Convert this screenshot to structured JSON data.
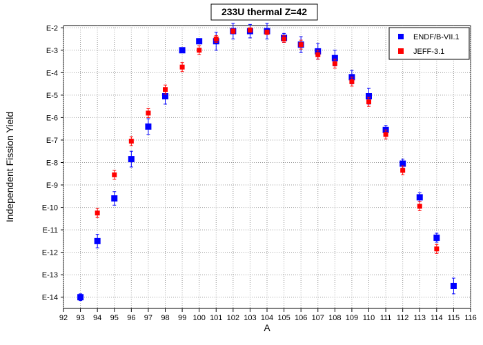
{
  "chart_data": {
    "type": "scatter",
    "title": "233U thermal Z=42",
    "xlabel": "A",
    "ylabel": "Independent Fission Yield",
    "xlim": [
      92,
      116
    ],
    "ylim_log10": [
      -14.5,
      -1.9
    ],
    "yscale": "log",
    "grid": true,
    "legend_position": "top-right",
    "x_ticks": [
      92,
      93,
      94,
      95,
      96,
      97,
      98,
      99,
      100,
      101,
      102,
      103,
      104,
      105,
      106,
      107,
      108,
      109,
      110,
      111,
      112,
      113,
      114,
      115,
      116
    ],
    "y_ticks": [
      {
        "exp": -2,
        "label": "E-2"
      },
      {
        "exp": -3,
        "label": "E-3"
      },
      {
        "exp": -4,
        "label": "E-4"
      },
      {
        "exp": -5,
        "label": "E-5"
      },
      {
        "exp": -6,
        "label": "E-6"
      },
      {
        "exp": -7,
        "label": "E-7"
      },
      {
        "exp": -8,
        "label": "E-8"
      },
      {
        "exp": -9,
        "label": "E-9"
      },
      {
        "exp": -10,
        "label": "E-10"
      },
      {
        "exp": -11,
        "label": "E-11"
      },
      {
        "exp": -12,
        "label": "E-12"
      },
      {
        "exp": -13,
        "label": "E-13"
      },
      {
        "exp": -14,
        "label": "E-14"
      }
    ],
    "series": [
      {
        "name": "ENDF/B-VII.1",
        "color": "#0000ff",
        "marker": "square",
        "points": [
          {
            "x": 93,
            "log10y": -14.0,
            "err": 0.15
          },
          {
            "x": 94,
            "log10y": -11.5,
            "err": 0.3
          },
          {
            "x": 95,
            "log10y": -9.6,
            "err": 0.3
          },
          {
            "x": 96,
            "log10y": -7.85,
            "err": 0.35
          },
          {
            "x": 97,
            "log10y": -6.4,
            "err": 0.35
          },
          {
            "x": 98,
            "log10y": -5.05,
            "err": 0.35
          },
          {
            "x": 99,
            "log10y": -3.0,
            "err": 0.1
          },
          {
            "x": 100,
            "log10y": -2.6,
            "err": 0.1
          },
          {
            "x": 101,
            "log10y": -2.6,
            "err": 0.4
          },
          {
            "x": 102,
            "log10y": -2.15,
            "err": 0.35
          },
          {
            "x": 103,
            "log10y": -2.15,
            "err": 0.3
          },
          {
            "x": 104,
            "log10y": -2.15,
            "err": 0.35
          },
          {
            "x": 105,
            "log10y": -2.45,
            "err": 0.2
          },
          {
            "x": 106,
            "log10y": -2.75,
            "err": 0.35
          },
          {
            "x": 107,
            "log10y": -3.05,
            "err": 0.35
          },
          {
            "x": 108,
            "log10y": -3.35,
            "err": 0.35
          },
          {
            "x": 109,
            "log10y": -4.2,
            "err": 0.3
          },
          {
            "x": 110,
            "log10y": -5.05,
            "err": 0.35
          },
          {
            "x": 111,
            "log10y": -6.55,
            "err": 0.2
          },
          {
            "x": 112,
            "log10y": -8.05,
            "err": 0.2
          },
          {
            "x": 113,
            "log10y": -9.55,
            "err": 0.2
          },
          {
            "x": 114,
            "log10y": -11.35,
            "err": 0.2
          },
          {
            "x": 115,
            "log10y": -13.5,
            "err": 0.35
          }
        ]
      },
      {
        "name": "JEFF-3.1",
        "color": "#ff0000",
        "marker": "square",
        "points": [
          {
            "x": 94,
            "log10y": -10.25,
            "err": 0.2
          },
          {
            "x": 95,
            "log10y": -8.55,
            "err": 0.2
          },
          {
            "x": 96,
            "log10y": -7.05,
            "err": 0.2
          },
          {
            "x": 97,
            "log10y": -5.8,
            "err": 0.2
          },
          {
            "x": 98,
            "log10y": -4.75,
            "err": 0.2
          },
          {
            "x": 99,
            "log10y": -3.75,
            "err": 0.2
          },
          {
            "x": 100,
            "log10y": -3.0,
            "err": 0.2
          },
          {
            "x": 101,
            "log10y": -2.5,
            "err": 0.15
          },
          {
            "x": 102,
            "log10y": -2.15,
            "err": 0.1
          },
          {
            "x": 103,
            "log10y": -2.1,
            "err": 0.1
          },
          {
            "x": 104,
            "log10y": -2.2,
            "err": 0.1
          },
          {
            "x": 105,
            "log10y": -2.5,
            "err": 0.15
          },
          {
            "x": 106,
            "log10y": -2.75,
            "err": 0.2
          },
          {
            "x": 107,
            "log10y": -3.2,
            "err": 0.2
          },
          {
            "x": 108,
            "log10y": -3.6,
            "err": 0.2
          },
          {
            "x": 109,
            "log10y": -4.4,
            "err": 0.2
          },
          {
            "x": 110,
            "log10y": -5.3,
            "err": 0.2
          },
          {
            "x": 111,
            "log10y": -6.75,
            "err": 0.2
          },
          {
            "x": 112,
            "log10y": -8.35,
            "err": 0.2
          },
          {
            "x": 113,
            "log10y": -9.95,
            "err": 0.2
          },
          {
            "x": 114,
            "log10y": -11.85,
            "err": 0.2
          }
        ]
      }
    ]
  }
}
